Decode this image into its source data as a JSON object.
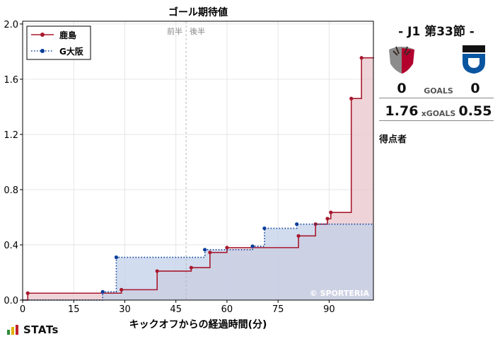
{
  "chart_data": {
    "type": "step-area",
    "title": "ゴール期待値",
    "xlabel": "キックオフからの経過時間(分)",
    "ylabel": "",
    "xlim": [
      0,
      103
    ],
    "ylim": [
      0,
      2.02
    ],
    "xticks": [
      0,
      15,
      30,
      45,
      60,
      75,
      90
    ],
    "yticks": [
      0.0,
      0.4,
      0.8,
      1.2,
      1.6,
      2.0
    ],
    "grid": true,
    "legend_position": "top-left",
    "halftime_minute": 48,
    "halftime_labels": {
      "first": "前半",
      "second": "後半"
    },
    "watermark": "© SPORTERIA",
    "series": [
      {
        "name": "鹿島",
        "color": "#a8192e",
        "fill": "#e8c5cb",
        "dash": "solid",
        "x": [
          0,
          1.5,
          29,
          39.5,
          49.5,
          55,
          60,
          81,
          86,
          89.5,
          90.5,
          96.5,
          99.5,
          103
        ],
        "y": [
          0,
          0.05,
          0.075,
          0.21,
          0.235,
          0.345,
          0.38,
          0.465,
          0.55,
          0.59,
          0.635,
          1.46,
          1.755,
          1.76
        ]
      },
      {
        "name": "G大阪",
        "color": "#0a3d9c",
        "fill": "#c2d0e8",
        "dash": "dotted",
        "x": [
          0,
          23.5,
          27.5,
          53.5,
          67.5,
          71,
          80.5,
          103
        ],
        "y": [
          0,
          0.06,
          0.31,
          0.365,
          0.39,
          0.52,
          0.55,
          0.55
        ]
      }
    ]
  },
  "match": {
    "title": "- J1 第33節 -",
    "home": {
      "goals": "0",
      "xgoals": "1.76",
      "logo_colors": [
        "#b3002d",
        "#8c8c8c"
      ]
    },
    "away": {
      "goals": "0",
      "xgoals": "0.55",
      "logo_colors": [
        "#0a55a0",
        "#111111"
      ]
    },
    "goals_label": "GOALS",
    "xgoals_label": "xGOALS",
    "scorers_label": "得点者"
  },
  "footer": {
    "brand": "STATs",
    "bar_colors": [
      "#2e8b3a",
      "#e0b000",
      "#c0202a"
    ]
  }
}
